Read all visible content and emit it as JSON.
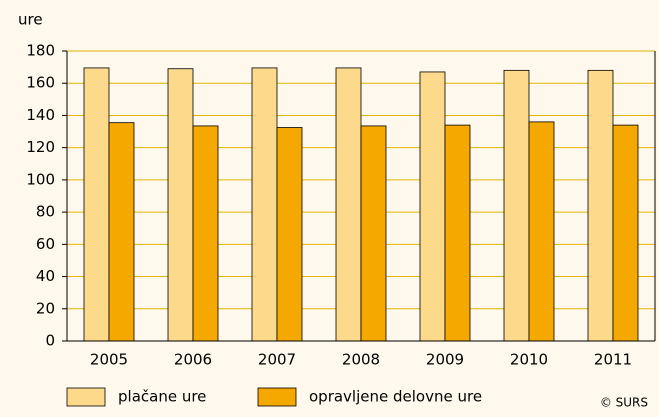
{
  "chart_data": {
    "type": "bar",
    "y_label": "ure",
    "source": "© SURS",
    "categories": [
      "2005",
      "2006",
      "2007",
      "2008",
      "2009",
      "2010",
      "2011"
    ],
    "series": [
      {
        "name": "plačane ure",
        "color": "#fdd98c",
        "values": [
          169.5,
          169,
          169.5,
          169.5,
          167,
          168,
          168
        ]
      },
      {
        "name": "opravljene delovne ure",
        "color": "#f5a800",
        "values": [
          135.5,
          133.5,
          132.5,
          133.5,
          134,
          136,
          134
        ]
      }
    ],
    "ylim": [
      0,
      180
    ],
    "yticks": [
      0,
      20,
      40,
      60,
      80,
      100,
      120,
      140,
      160,
      180
    ],
    "grid": true
  }
}
